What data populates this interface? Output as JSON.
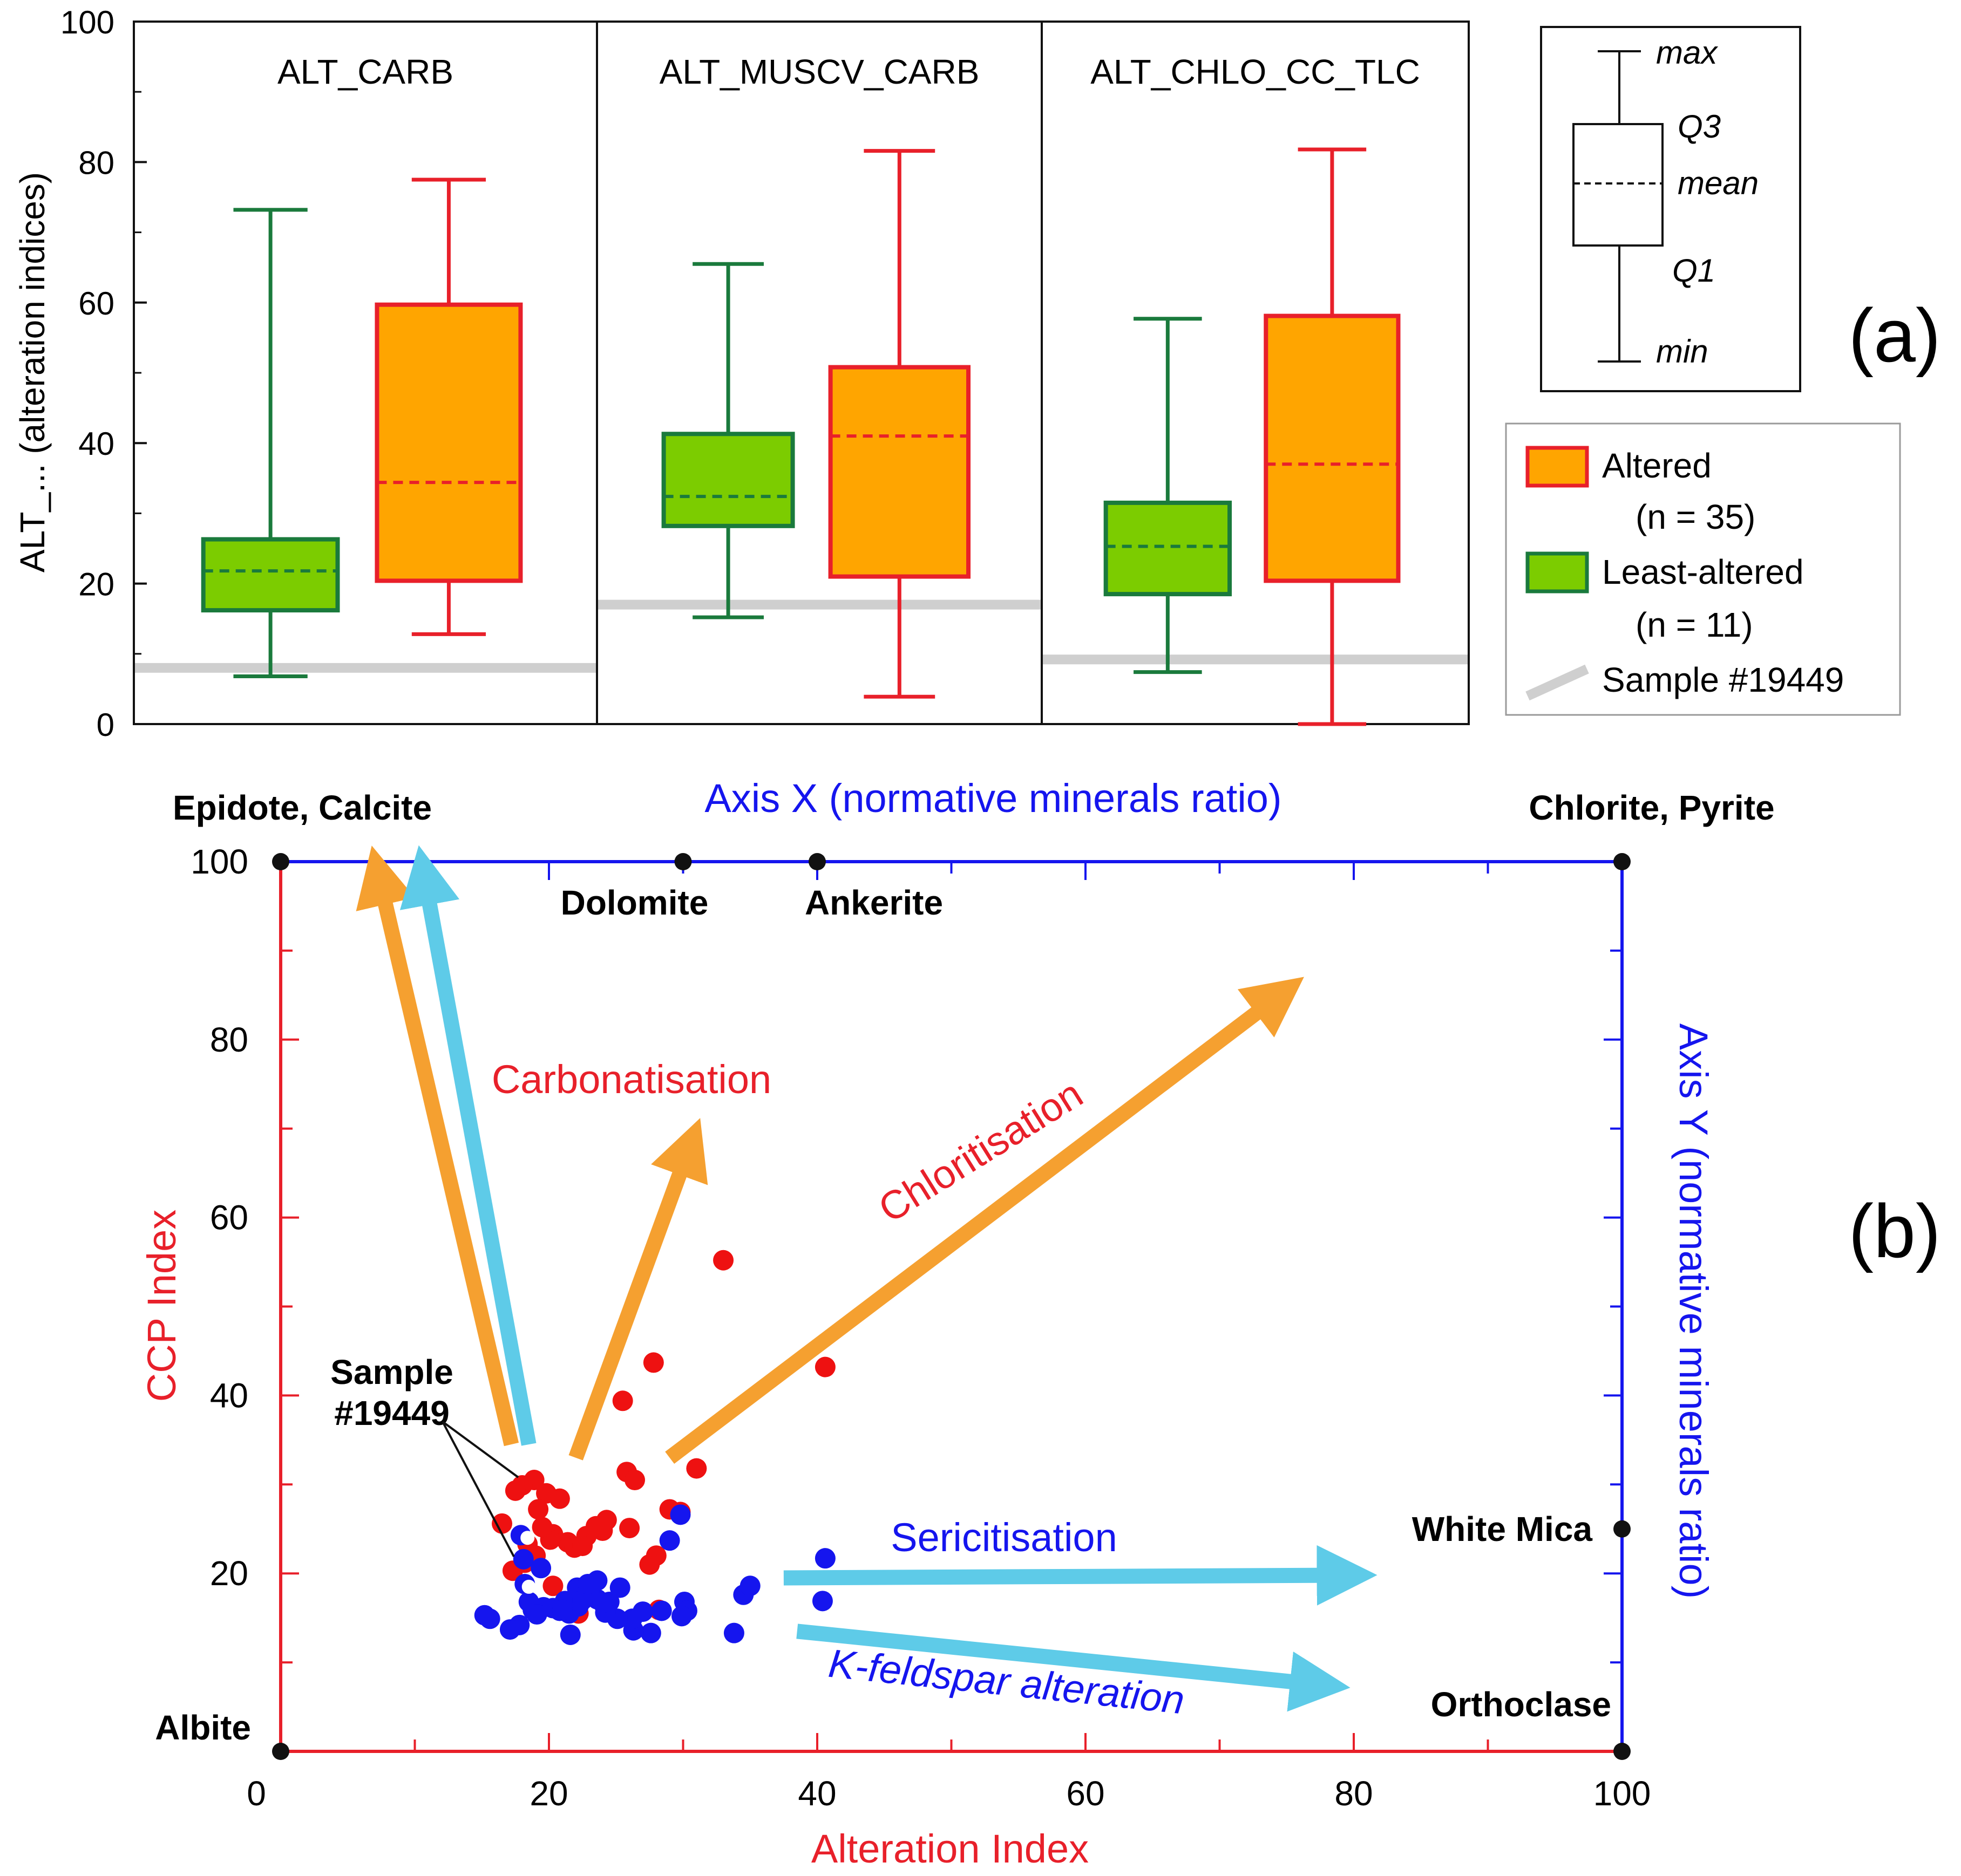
{
  "panel_a": {
    "label": "(a)",
    "ylabel": "ALT_... (alteration indices)",
    "yticks": [
      "0",
      "20",
      "40",
      "60",
      "80",
      "100"
    ],
    "legend_box": {
      "max": "max",
      "q3": "Q3",
      "mean": "mean",
      "q1": "Q1",
      "min": "min"
    },
    "legend": {
      "altered": "Altered",
      "altered_n": "(n = 35)",
      "least": "Least-altered",
      "least_n": "(n = 11)",
      "sample": "Sample #19449"
    },
    "colors": {
      "altered_fill": "#ffa500",
      "altered_stroke": "#e8202a",
      "least_fill": "#7ccc00",
      "least_stroke": "#1a7a3c",
      "sample_line": "#cfcfcf"
    }
  },
  "chart_data": [
    {
      "type": "box",
      "ylim": [
        0,
        100
      ],
      "ylabel": "ALT_... (alteration indices)",
      "groups": [
        {
          "name": "ALT_CARB",
          "sample_19449": 8.0,
          "least_altered": {
            "min": 6.8,
            "q1": 16.2,
            "mean": 21.8,
            "q3": 26.3,
            "max": 73.2
          },
          "altered": {
            "min": 12.8,
            "q1": 20.4,
            "mean": 34.4,
            "q3": 59.7,
            "max": 77.5
          }
        },
        {
          "name": "ALT_MUSCV_CARB",
          "sample_19449": 17.0,
          "least_altered": {
            "min": 15.2,
            "q1": 28.2,
            "mean": 32.4,
            "q3": 41.3,
            "max": 65.5
          },
          "altered": {
            "min": 3.9,
            "q1": 21.0,
            "mean": 41.0,
            "q3": 50.8,
            "max": 81.6
          }
        },
        {
          "name": "ALT_CHLO_CC_TLC",
          "sample_19449": 9.2,
          "least_altered": {
            "min": 7.4,
            "q1": 18.5,
            "mean": 25.3,
            "q3": 31.5,
            "max": 57.7
          },
          "altered": {
            "min": 0.0,
            "q1": 20.4,
            "mean": 37.0,
            "q3": 58.1,
            "max": 81.8
          }
        }
      ]
    },
    {
      "type": "scatter",
      "title": "Axis X (normative minerals ratio)",
      "xlabel": "Alteration Index",
      "ylabel": "CCP Index",
      "y2label": "Axis Y (normative minerals ratio)",
      "xlim": [
        0,
        100
      ],
      "ylim": [
        0,
        100
      ],
      "xticks": [
        "0",
        "20",
        "40",
        "60",
        "80",
        "100"
      ],
      "yticks": [
        "20",
        "40",
        "60",
        "80",
        "100"
      ],
      "endmembers": [
        {
          "name": "Epidote, Calcite",
          "x": 0,
          "y": 100
        },
        {
          "name": "Dolomite",
          "x": 30,
          "y": 100
        },
        {
          "name": "Ankerite",
          "x": 40,
          "y": 100
        },
        {
          "name": "Chlorite, Pyrite",
          "x": 100,
          "y": 100
        },
        {
          "name": "White Mica",
          "x": 100,
          "y": 25
        },
        {
          "name": "Orthoclase",
          "x": 100,
          "y": 0
        },
        {
          "name": "Albite",
          "x": 0,
          "y": 0
        }
      ],
      "annotation": "Sample #19449",
      "trends": [
        {
          "name": "Carbonatisation",
          "color": "#f5a030",
          "from": [
            17.2,
            34.5
          ],
          "to": [
            7.3,
            98.5
          ]
        },
        {
          "name": "",
          "color": "#5ecbe8",
          "from": [
            18.5,
            34.5
          ],
          "to": [
            10.7,
            98.5
          ]
        },
        {
          "name": "",
          "color": "#f5a030",
          "from": [
            22,
            33
          ],
          "to": [
            30.5,
            68
          ]
        },
        {
          "name": "Chloritisation",
          "color": "#f5a030",
          "from": [
            29,
            33
          ],
          "to": [
            74.5,
            85
          ]
        },
        {
          "name": "Sericitisation",
          "color": "#5ecbe8",
          "from": [
            37.5,
            19.5
          ],
          "to": [
            79.5,
            19.8
          ]
        },
        {
          "name": "K-feldspar alteration",
          "color": "#5ecbe8",
          "from": [
            38.5,
            13.5
          ],
          "to": [
            77.5,
            7.5
          ]
        }
      ],
      "series": [
        {
          "name": "Altered",
          "color": "#ee1111",
          "x": [
            33.0,
            40.6,
            27.8,
            25.5,
            25.8,
            24.3,
            26.4,
            31.0,
            29.0,
            29.8,
            28.0,
            26.0,
            27.5,
            24.0,
            23.5,
            22.8,
            21.4,
            21.9,
            22.5,
            20.3,
            20.1,
            19.5,
            19.8,
            20.8,
            19.2,
            18.9,
            18.0,
            17.5,
            18.4,
            19.0,
            17.3,
            16.5,
            18.2,
            22.2,
            28.2,
            20.3
          ],
          "y": [
            55.2,
            43.2,
            43.7,
            39.4,
            31.4,
            26.0,
            30.5,
            31.8,
            27.2,
            26.9,
            22.0,
            25.1,
            21.0,
            24.8,
            25.3,
            24.2,
            23.5,
            22.9,
            23.1,
            24.4,
            23.8,
            25.2,
            29.0,
            28.4,
            27.2,
            30.5,
            29.9,
            29.3,
            23.3,
            22.0,
            20.3,
            25.6,
            21.2,
            15.5,
            15.9,
            18.6
          ]
        },
        {
          "name": "Least-altered",
          "color": "#1515ee",
          "x": [
            40.6,
            40.4,
            29.8,
            29.0,
            33.8,
            34.5,
            35.0,
            30.1,
            30.3,
            29.9,
            28.4,
            27.6,
            27.0,
            26.3,
            26.2,
            25.1,
            24.5,
            23.6,
            22.8,
            22.2,
            21.5,
            21.6,
            20.8,
            19.6,
            18.8,
            18.2,
            17.8,
            17.1,
            15.6,
            15.2,
            18.1,
            19.4,
            20.3,
            21.2,
            22.1,
            23.6,
            24.2,
            25.3,
            22.5,
            23.0,
            24.0,
            17.9,
            18.5,
            19.1,
            21.0,
            22.9
          ],
          "y": [
            21.7,
            16.9,
            26.6,
            23.7,
            13.3,
            17.6,
            18.6,
            16.8,
            15.8,
            15.2,
            15.8,
            13.3,
            15.7,
            13.6,
            14.9,
            14.9,
            16.8,
            17.1,
            17.9,
            16.3,
            15.5,
            13.1,
            15.8,
            16.2,
            15.9,
            18.8,
            14.2,
            13.7,
            14.9,
            15.3,
            21.6,
            20.6,
            16.1,
            16.9,
            18.4,
            19.2,
            15.6,
            18.4,
            17.0,
            17.8,
            16.7,
            24.3,
            16.8,
            15.4,
            15.9,
            18.8
          ]
        },
        {
          "name": "Sample #19449",
          "color": "#ffffff",
          "x": [
            18.4,
            18.5
          ],
          "y": [
            24.0,
            18.5
          ]
        }
      ]
    }
  ],
  "panel_b": {
    "label": "(b)"
  }
}
